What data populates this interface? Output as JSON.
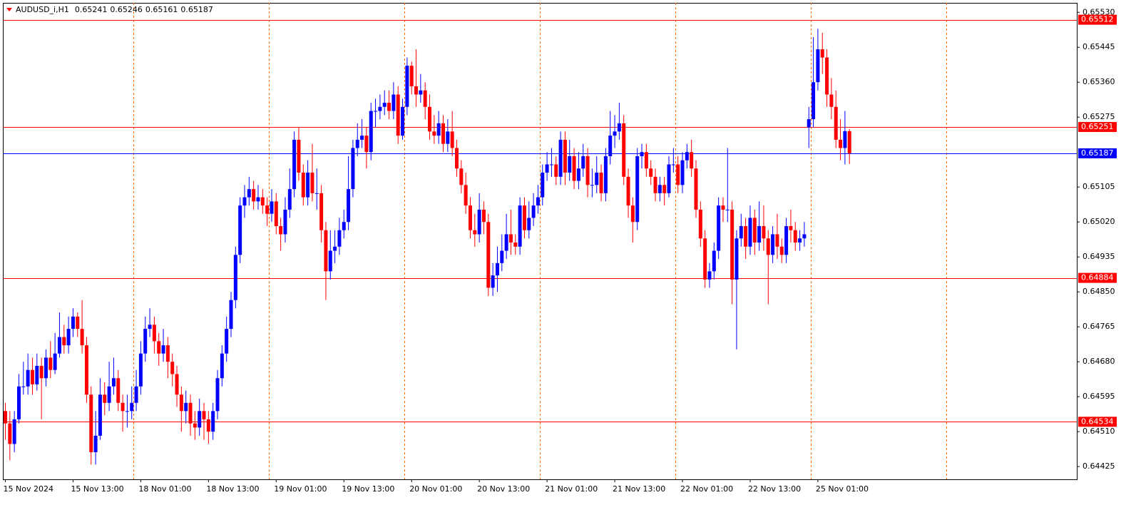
{
  "chart_data": {
    "type": "candlestick",
    "title": "AUDUSD_i,H1",
    "up_color": "#0000ff",
    "down_color": "#ff0000",
    "categories": [
      "15 Nov 2024",
      null,
      null,
      null,
      null,
      null,
      null,
      null,
      null,
      null,
      null,
      null,
      null,
      null,
      null,
      "15 Nov 13:00",
      null,
      null,
      null,
      null,
      null,
      null,
      null,
      null,
      null,
      null,
      null,
      null,
      null,
      null,
      "18 Nov 01:00",
      null,
      null,
      null,
      null,
      null,
      null,
      null,
      null,
      null,
      null,
      null,
      null,
      null,
      null,
      "18 Nov 13:00",
      null,
      null,
      null,
      null,
      null,
      null,
      null,
      null,
      null,
      null,
      null,
      null,
      null,
      null,
      "19 Nov 01:00",
      null,
      null,
      null,
      null,
      null,
      null,
      null,
      null,
      null,
      null,
      null,
      null,
      null,
      null,
      "19 Nov 13:00",
      null,
      null,
      null,
      null,
      null,
      null,
      null,
      null,
      null,
      null,
      null,
      null,
      null,
      null,
      "20 Nov 01:00",
      null,
      null,
      null,
      null,
      null,
      null,
      null,
      null,
      null,
      null,
      null,
      null,
      null,
      null,
      "20 Nov 13:00",
      null,
      null,
      null,
      null,
      null,
      null,
      null,
      null,
      null,
      null,
      null,
      null,
      null,
      null,
      "21 Nov 01:00",
      null,
      null,
      null,
      null,
      null,
      null,
      null,
      null,
      null,
      null,
      null,
      null,
      null,
      null,
      "21 Nov 13:00",
      null,
      null,
      null,
      null,
      null,
      null,
      null,
      null,
      null,
      null,
      null,
      null,
      null,
      null,
      "22 Nov 01:00",
      null,
      null,
      null,
      null,
      null,
      null,
      null,
      null,
      null,
      null,
      null,
      null,
      null,
      null,
      "22 Nov 13:00",
      null,
      null,
      null,
      null,
      null,
      null,
      null,
      null,
      null,
      null,
      null,
      null,
      null,
      null,
      "25 Nov 01:00",
      null,
      null,
      null,
      null,
      null,
      null,
      null
    ],
    "open": [
      0.6456,
      0.6453,
      0.6448,
      0.6454,
      0.6462,
      0.6462,
      0.6466,
      0.64625,
      0.6467,
      0.6464,
      0.6469,
      0.6466,
      0.647,
      0.6474,
      0.6472,
      0.6476,
      0.6479,
      0.6476,
      0.6472,
      0.646,
      0.6446,
      0.645,
      0.646,
      0.6458,
      0.6462,
      0.6464,
      0.6458,
      0.6456,
      0.6456,
      0.6458,
      0.6462,
      0.647,
      0.6476,
      0.6477,
      0.6473,
      0.647,
      0.6472,
      0.6468,
      0.6465,
      0.646,
      0.6456,
      0.6458,
      0.6453,
      0.6452,
      0.6456,
      0.6454,
      0.6451,
      0.6456,
      0.6464,
      0.647,
      0.6476,
      0.6483,
      0.6494,
      0.6506,
      0.6508,
      0.651,
      0.6507,
      0.6508,
      0.6506,
      0.6504,
      0.6507,
      0.6501,
      0.6499,
      0.6505,
      0.651,
      0.6522,
      0.6514,
      0.6508,
      0.6514,
      0.6509,
      0.6509,
      0.65,
      0.649,
      0.6495,
      0.6496,
      0.65,
      0.6502,
      0.651,
      0.652,
      0.6522,
      0.6523,
      0.6519,
      0.6529,
      0.6529,
      0.653,
      0.6531,
      0.6529,
      0.6533,
      0.6523,
      0.653,
      0.654,
      0.6535,
      0.6533,
      0.6534,
      0.653,
      0.6524,
      0.6523,
      0.6526,
      0.6521,
      0.6524,
      0.652,
      0.6515,
      0.6511,
      0.6506,
      0.65,
      0.6499,
      0.6505,
      0.6502,
      0.6486,
      0.6489,
      0.6492,
      0.6495,
      0.6499,
      0.6497,
      0.6496,
      0.6506,
      0.65,
      0.6503,
      0.6506,
      0.6508,
      0.6514,
      0.6516,
      0.6516,
      0.6513,
      0.6522,
      0.6514,
      0.6518,
      0.6512,
      0.6515,
      0.6518,
      0.6511,
      0.6511,
      0.6514,
      0.6509,
      0.6518,
      0.6523,
      0.6524,
      0.6526,
      0.6513,
      0.6506,
      0.6502,
      0.6518,
      0.6519,
      0.6515,
      0.6513,
      0.6509,
      0.6511,
      0.6509,
      0.6516,
      0.6516,
      0.6511,
      0.6517,
      0.6519,
      0.6515,
      0.6505,
      0.6498,
      0.6488,
      0.649,
      0.6495,
      0.6506,
      0.6505,
      0.6505,
      0.6488,
      0.6498,
      0.6501,
      0.6496,
      0.6503,
      0.6497,
      0.6501,
      0.6498,
      0.6494,
      0.6499,
      0.6496,
      0.6494,
      0.6501,
      0.65,
      0.6497,
      0.6498,
      0.6525,
      0.6527,
      0.6536,
      0.6544,
      0.6542,
      0.6533,
      0.653,
      0.6522,
      0.652,
      0.65241
    ],
    "high": [
      0.6458,
      0.6456,
      0.6456,
      0.6465,
      0.6468,
      0.647,
      0.6469,
      0.647,
      0.6469,
      0.6471,
      0.6473,
      0.6475,
      0.648,
      0.6477,
      0.6479,
      0.6481,
      0.648,
      0.6483,
      0.6474,
      0.6462,
      0.6456,
      0.6464,
      0.6463,
      0.6468,
      0.6469,
      0.6466,
      0.646,
      0.646,
      0.6462,
      0.6466,
      0.6473,
      0.6479,
      0.6481,
      0.6479,
      0.6475,
      0.6476,
      0.6474,
      0.647,
      0.6467,
      0.6462,
      0.6461,
      0.646,
      0.6456,
      0.6459,
      0.6458,
      0.6456,
      0.6458,
      0.6466,
      0.6472,
      0.6479,
      0.6485,
      0.6496,
      0.6508,
      0.6511,
      0.6513,
      0.6512,
      0.6511,
      0.651,
      0.6508,
      0.651,
      0.6509,
      0.6503,
      0.6508,
      0.6515,
      0.6524,
      0.6525,
      0.6516,
      0.6517,
      0.6521,
      0.6515,
      0.6511,
      0.6502,
      0.65,
      0.65,
      0.6503,
      0.6505,
      0.6518,
      0.6522,
      0.6526,
      0.6527,
      0.6525,
      0.6531,
      0.6532,
      0.6533,
      0.6534,
      0.6534,
      0.6536,
      0.6535,
      0.6532,
      0.6542,
      0.6541,
      0.6544,
      0.6538,
      0.6536,
      0.6533,
      0.6528,
      0.6529,
      0.6528,
      0.6527,
      0.6529,
      0.6522,
      0.6517,
      0.6514,
      0.6508,
      0.6504,
      0.6509,
      0.6507,
      0.6504,
      0.6492,
      0.6496,
      0.6499,
      0.6504,
      0.6505,
      0.6499,
      0.6508,
      0.6508,
      0.6507,
      0.6509,
      0.6511,
      0.6516,
      0.6519,
      0.652,
      0.6518,
      0.6524,
      0.6524,
      0.6522,
      0.652,
      0.6519,
      0.6521,
      0.652,
      0.6515,
      0.6518,
      0.6516,
      0.652,
      0.6529,
      0.6528,
      0.6531,
      0.6528,
      0.6515,
      0.6508,
      0.652,
      0.6521,
      0.6521,
      0.6517,
      0.6515,
      0.6513,
      0.6513,
      0.6518,
      0.652,
      0.6518,
      0.6519,
      0.6521,
      0.6522,
      0.6517,
      0.6507,
      0.65,
      0.6492,
      0.6497,
      0.6508,
      0.6508,
      0.652,
      0.6507,
      0.65,
      0.6504,
      0.6503,
      0.6506,
      0.6505,
      0.6507,
      0.6506,
      0.65,
      0.6501,
      0.6504,
      0.6498,
      0.6503,
      0.6505,
      0.6502,
      0.65,
      0.6502,
      0.653,
      0.6547,
      0.6549,
      0.6548,
      0.6544,
      0.6537,
      0.6534,
      0.6527,
      0.6529,
      0.65246
    ],
    "low": [
      0.6449,
      0.6444,
      0.6446,
      0.6453,
      0.646,
      0.646,
      0.646,
      0.6461,
      0.6454,
      0.6462,
      0.6464,
      0.6465,
      0.6469,
      0.647,
      0.647,
      0.6474,
      0.6474,
      0.647,
      0.6458,
      0.6443,
      0.6443,
      0.6449,
      0.6455,
      0.6456,
      0.646,
      0.6456,
      0.6451,
      0.6452,
      0.6454,
      0.6456,
      0.646,
      0.6468,
      0.6474,
      0.647,
      0.6467,
      0.6468,
      0.6464,
      0.6462,
      0.6457,
      0.6451,
      0.6453,
      0.645,
      0.6449,
      0.645,
      0.6449,
      0.6448,
      0.6449,
      0.6454,
      0.6462,
      0.6468,
      0.6474,
      0.6481,
      0.6492,
      0.6503,
      0.6506,
      0.6505,
      0.6505,
      0.6504,
      0.6501,
      0.6502,
      0.6499,
      0.6495,
      0.6497,
      0.6503,
      0.6508,
      0.6512,
      0.6506,
      0.6506,
      0.6507,
      0.6505,
      0.6497,
      0.6483,
      0.6488,
      0.6492,
      0.6494,
      0.6498,
      0.65,
      0.6508,
      0.6518,
      0.652,
      0.6515,
      0.6517,
      0.6525,
      0.6527,
      0.6528,
      0.6527,
      0.6527,
      0.6521,
      0.6522,
      0.6528,
      0.6533,
      0.653,
      0.6531,
      0.6527,
      0.6522,
      0.6521,
      0.6521,
      0.6519,
      0.6519,
      0.6518,
      0.6513,
      0.6509,
      0.6504,
      0.6498,
      0.6496,
      0.6497,
      0.6499,
      0.6484,
      0.6484,
      0.6485,
      0.649,
      0.6493,
      0.6494,
      0.6494,
      0.6494,
      0.6498,
      0.6498,
      0.6501,
      0.6504,
      0.6506,
      0.6512,
      0.6513,
      0.6511,
      0.6511,
      0.6511,
      0.6512,
      0.651,
      0.651,
      0.6513,
      0.6508,
      0.6508,
      0.6509,
      0.6507,
      0.6507,
      0.6516,
      0.652,
      0.6522,
      0.6511,
      0.6503,
      0.6497,
      0.65,
      0.6515,
      0.6513,
      0.6511,
      0.6507,
      0.6507,
      0.6506,
      0.6508,
      0.6514,
      0.6509,
      0.6509,
      0.6515,
      0.6513,
      0.6503,
      0.6496,
      0.6486,
      0.6486,
      0.6488,
      0.6493,
      0.6502,
      0.6502,
      0.6482,
      0.6471,
      0.6496,
      0.6493,
      0.6494,
      0.6494,
      0.6495,
      0.6495,
      0.6482,
      0.6492,
      0.6493,
      0.6492,
      0.6492,
      0.6497,
      0.6495,
      0.6495,
      0.6496,
      0.652,
      0.6525,
      0.6534,
      0.6538,
      0.653,
      0.6527,
      0.652,
      0.6517,
      0.6516,
      0.65161
    ],
    "close": [
      0.6453,
      0.6448,
      0.6454,
      0.6462,
      0.6462,
      0.6466,
      0.64625,
      0.6467,
      0.6464,
      0.6469,
      0.6466,
      0.647,
      0.6474,
      0.6472,
      0.6476,
      0.6479,
      0.6476,
      0.6472,
      0.646,
      0.6446,
      0.645,
      0.646,
      0.6458,
      0.6462,
      0.6464,
      0.6458,
      0.6456,
      0.6456,
      0.6458,
      0.6462,
      0.647,
      0.6476,
      0.6477,
      0.6473,
      0.647,
      0.6472,
      0.6468,
      0.6465,
      0.646,
      0.6456,
      0.6458,
      0.6453,
      0.6452,
      0.6456,
      0.6454,
      0.6451,
      0.6456,
      0.6464,
      0.647,
      0.6476,
      0.6483,
      0.6494,
      0.6506,
      0.6508,
      0.651,
      0.6507,
      0.6508,
      0.6506,
      0.6504,
      0.6507,
      0.6501,
      0.6499,
      0.6505,
      0.651,
      0.6522,
      0.6514,
      0.6508,
      0.6514,
      0.6509,
      0.6509,
      0.65,
      0.649,
      0.6495,
      0.6496,
      0.65,
      0.6502,
      0.651,
      0.652,
      0.6522,
      0.6523,
      0.6519,
      0.6529,
      0.6529,
      0.653,
      0.6531,
      0.6529,
      0.6533,
      0.6523,
      0.653,
      0.654,
      0.6535,
      0.6533,
      0.6534,
      0.653,
      0.6524,
      0.6523,
      0.6526,
      0.6521,
      0.6524,
      0.652,
      0.6515,
      0.6511,
      0.6506,
      0.65,
      0.6499,
      0.6505,
      0.6502,
      0.6486,
      0.6489,
      0.6492,
      0.6495,
      0.6499,
      0.6497,
      0.6496,
      0.6506,
      0.65,
      0.6503,
      0.6506,
      0.6508,
      0.6514,
      0.6516,
      0.6516,
      0.6513,
      0.6522,
      0.6514,
      0.6518,
      0.6512,
      0.6515,
      0.6518,
      0.6511,
      0.6511,
      0.6514,
      0.6509,
      0.6518,
      0.6523,
      0.6524,
      0.6526,
      0.6513,
      0.6506,
      0.6502,
      0.6518,
      0.6519,
      0.6515,
      0.6513,
      0.6509,
      0.6511,
      0.6509,
      0.6516,
      0.6516,
      0.6511,
      0.6517,
      0.6519,
      0.6515,
      0.6505,
      0.6498,
      0.6488,
      0.649,
      0.6495,
      0.6506,
      0.6505,
      0.6505,
      0.6488,
      0.6498,
      0.6501,
      0.6496,
      0.6503,
      0.6497,
      0.6501,
      0.6498,
      0.6494,
      0.6499,
      0.6496,
      0.6494,
      0.6501,
      0.65,
      0.6497,
      0.6498,
      0.6499,
      0.6527,
      0.6536,
      0.6544,
      0.6542,
      0.6533,
      0.653,
      0.6522,
      0.652,
      0.65241,
      0.65187
    ],
    "ylim": [
      0.64394,
      0.65553
    ],
    "yticks": [
      {
        "value": 0.6553,
        "label": "0.65530"
      },
      0.65445,
      {
        "value": 0.6536,
        "label": "0.65360"
      },
      0.65275,
      0.65105,
      {
        "value": 0.6502,
        "label": "0.65020"
      },
      0.64935,
      {
        "value": 0.6485,
        "label": "0.64850"
      },
      0.64765,
      {
        "value": 0.6468,
        "label": "0.64680"
      },
      0.64595,
      {
        "value": 0.6451,
        "label": "0.64510"
      },
      0.64425
    ],
    "levels": [
      {
        "value": 0.65512,
        "color": "#ff0000"
      },
      {
        "value": 0.65251,
        "color": "#ff0000"
      },
      {
        "value": 0.65187,
        "color": "#0000ff"
      },
      {
        "value": 0.64884,
        "color": "#ff0000"
      },
      {
        "value": 0.64534,
        "color": "#ff0000"
      }
    ]
  }
}
